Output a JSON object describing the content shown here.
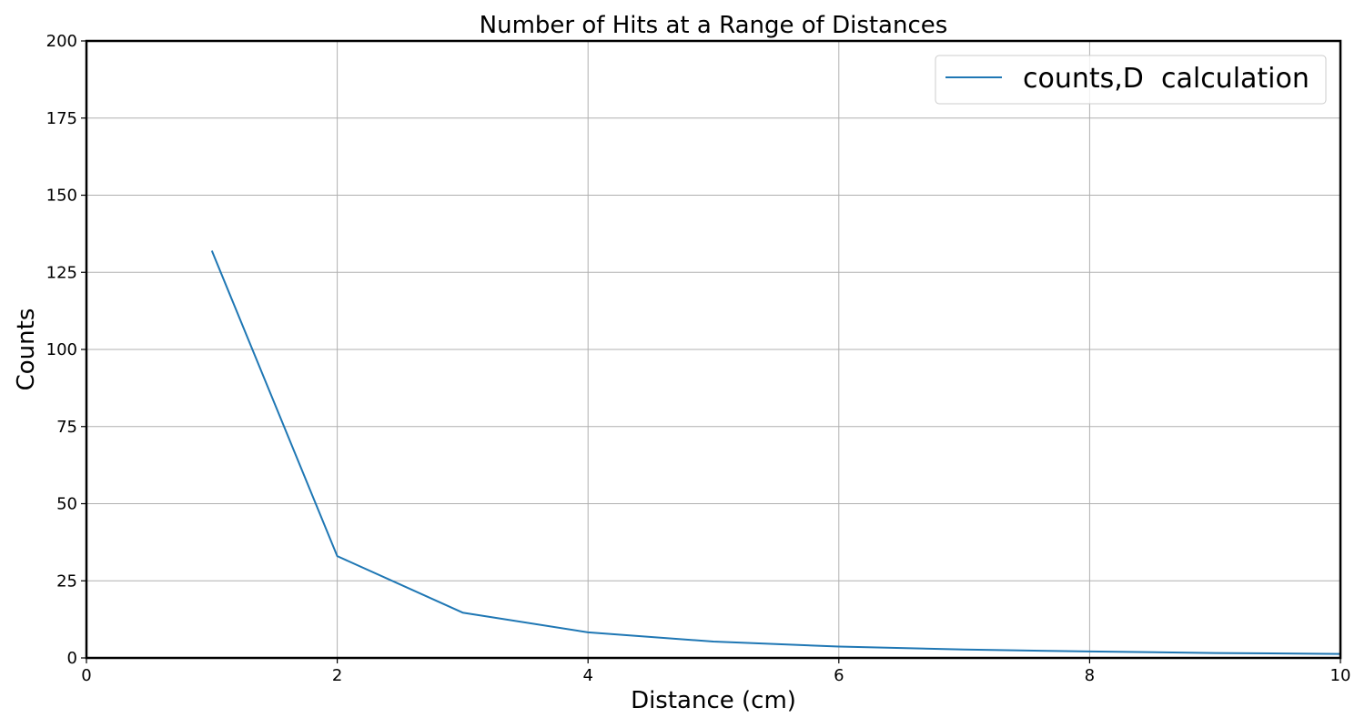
{
  "chart_data": {
    "type": "line",
    "title": "Number of Hits at a Range of Distances",
    "xlabel": "Distance (cm)",
    "ylabel": "Counts",
    "xlim": [
      0,
      10
    ],
    "ylim": [
      0,
      200
    ],
    "x_ticks": [
      0,
      2,
      4,
      6,
      8,
      10
    ],
    "y_ticks": [
      0,
      25,
      50,
      75,
      100,
      125,
      150,
      175,
      200
    ],
    "grid": true,
    "legend_position": "top-right",
    "series": [
      {
        "name": "counts,D  calculation",
        "color": "#1f77b4",
        "x": [
          1,
          2,
          3,
          4,
          5,
          6,
          7,
          8,
          9,
          10
        ],
        "y": [
          132,
          33,
          14.7,
          8.3,
          5.3,
          3.7,
          2.7,
          2.1,
          1.6,
          1.3
        ]
      }
    ]
  }
}
